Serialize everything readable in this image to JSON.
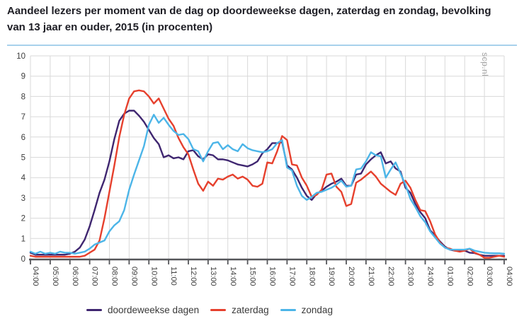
{
  "page": {
    "watermark": "scp.nl"
  },
  "colors": {
    "title_rule": "#a7d1ec",
    "grid": "#d9d9d9",
    "axis": "#55565a",
    "tick_text": "#3c3c3c",
    "title_text": "#1d1d24",
    "watermark_text": "#a2a2a2"
  },
  "chart_data": {
    "type": "line",
    "title": "Aandeel lezers per moment van de dag op doordeweekse dagen, zaterdag en zondag, bevolking van 13 jaar en ouder, 2015 (in procenten)",
    "xlabel": "",
    "ylabel": "",
    "ylim": [
      0,
      10
    ],
    "y_ticks": [
      0,
      1,
      2,
      3,
      4,
      5,
      6,
      7,
      8,
      9,
      10
    ],
    "grid": true,
    "legend_position": "bottom",
    "x_labels": [
      "04:00",
      "05:00",
      "06:00",
      "07:00",
      "08:00",
      "09:00",
      "10:00",
      "11:00",
      "12:00",
      "13:00",
      "14:00",
      "15:00",
      "16:00",
      "17:00",
      "18:00",
      "19:00",
      "20:00",
      "21:00",
      "22:00",
      "23:00",
      "24:00",
      "01:00",
      "02:00",
      "03:00",
      "04:00"
    ],
    "points_per_hour": 4,
    "series": [
      {
        "name": "doordeweekse dagen",
        "color": "#3f2670",
        "values": [
          0.3,
          0.2,
          0.2,
          0.2,
          0.2,
          0.2,
          0.2,
          0.2,
          0.25,
          0.35,
          0.55,
          0.95,
          1.6,
          2.4,
          3.25,
          3.9,
          4.8,
          5.9,
          6.8,
          7.15,
          7.3,
          7.3,
          7.05,
          6.75,
          6.35,
          5.95,
          5.65,
          5.0,
          5.1,
          4.95,
          5.0,
          4.9,
          5.3,
          5.35,
          5.05,
          4.9,
          5.15,
          5.1,
          4.9,
          4.9,
          4.85,
          4.75,
          4.65,
          4.6,
          4.55,
          4.65,
          4.8,
          5.2,
          5.4,
          5.7,
          5.7,
          5.75,
          4.6,
          4.4,
          4.0,
          3.5,
          3.1,
          2.9,
          3.2,
          3.35,
          3.55,
          3.7,
          3.8,
          3.95,
          3.6,
          3.6,
          4.15,
          4.2,
          4.65,
          4.9,
          5.1,
          5.25,
          4.7,
          4.8,
          4.45,
          4.3,
          3.5,
          3.25,
          2.7,
          2.3,
          2.0,
          1.4,
          1.15,
          0.85,
          0.6,
          0.45,
          0.4,
          0.4,
          0.4,
          0.3,
          0.28,
          0.2,
          0.15,
          0.15,
          0.15,
          0.15,
          0.15
        ]
      },
      {
        "name": "zaterdag",
        "color": "#e6402d",
        "values": [
          0.15,
          0.1,
          0.1,
          0.1,
          0.1,
          0.1,
          0.1,
          0.1,
          0.1,
          0.1,
          0.1,
          0.15,
          0.3,
          0.45,
          0.9,
          2.0,
          3.3,
          4.6,
          6.0,
          7.1,
          7.9,
          8.25,
          8.3,
          8.25,
          8.0,
          7.65,
          7.9,
          7.4,
          6.9,
          6.55,
          5.95,
          5.5,
          5.15,
          4.4,
          3.7,
          3.35,
          3.8,
          3.6,
          3.95,
          3.9,
          4.05,
          4.15,
          3.95,
          4.05,
          3.9,
          3.6,
          3.55,
          3.7,
          4.75,
          4.7,
          5.3,
          6.05,
          5.85,
          4.65,
          4.6,
          4.0,
          3.6,
          3.05,
          3.15,
          3.4,
          4.15,
          4.2,
          3.55,
          3.3,
          2.6,
          2.7,
          3.75,
          3.9,
          4.1,
          4.3,
          4.05,
          3.7,
          3.5,
          3.3,
          3.15,
          3.7,
          3.85,
          3.5,
          2.9,
          2.4,
          2.35,
          1.85,
          1.2,
          0.8,
          0.55,
          0.5,
          0.4,
          0.35,
          0.4,
          0.5,
          0.3,
          0.2,
          0.05,
          0.05,
          0.1,
          0.15,
          0.1
        ]
      },
      {
        "name": "zondag",
        "color": "#4cb5e8",
        "values": [
          0.35,
          0.25,
          0.35,
          0.25,
          0.3,
          0.25,
          0.35,
          0.3,
          0.3,
          0.25,
          0.3,
          0.35,
          0.5,
          0.7,
          0.8,
          0.9,
          1.35,
          1.65,
          1.85,
          2.4,
          3.4,
          4.15,
          4.85,
          5.55,
          6.6,
          7.1,
          6.7,
          6.95,
          6.6,
          6.3,
          6.1,
          6.15,
          5.9,
          5.4,
          5.3,
          4.8,
          5.3,
          5.7,
          5.75,
          5.4,
          5.6,
          5.4,
          5.3,
          5.65,
          5.45,
          5.35,
          5.3,
          5.25,
          5.3,
          5.4,
          5.7,
          5.85,
          4.5,
          4.35,
          3.6,
          3.1,
          2.9,
          3.05,
          3.25,
          3.3,
          3.4,
          3.5,
          3.65,
          3.85,
          3.55,
          3.6,
          4.4,
          4.45,
          4.8,
          5.25,
          5.1,
          5.05,
          4.0,
          4.4,
          4.75,
          4.2,
          3.65,
          2.95,
          2.55,
          2.1,
          1.8,
          1.35,
          1.05,
          0.75,
          0.55,
          0.45,
          0.45,
          0.45,
          0.45,
          0.5,
          0.4,
          0.35,
          0.3,
          0.28,
          0.27,
          0.27,
          0.25
        ]
      }
    ]
  }
}
